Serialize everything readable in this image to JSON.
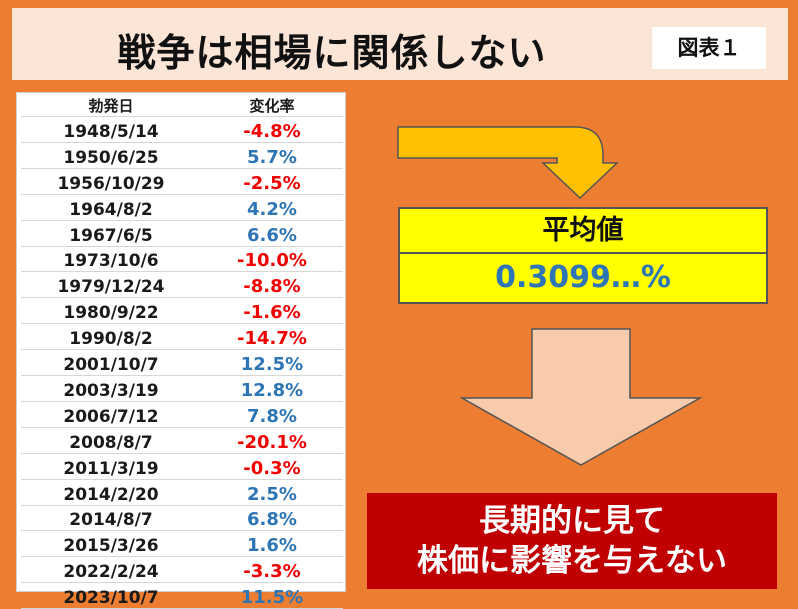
{
  "header": {
    "title": "戦争は相場に関係しない",
    "badge": "図表１"
  },
  "table": {
    "col_date": "勃発日",
    "col_change": "変化率",
    "rows": [
      {
        "date": "1948/5/14",
        "change": "-4.8%",
        "sign": "neg"
      },
      {
        "date": "1950/6/25",
        "change": "5.7%",
        "sign": "pos"
      },
      {
        "date": "1956/10/29",
        "change": "-2.5%",
        "sign": "neg"
      },
      {
        "date": "1964/8/2",
        "change": "4.2%",
        "sign": "pos"
      },
      {
        "date": "1967/6/5",
        "change": "6.6%",
        "sign": "pos"
      },
      {
        "date": "1973/10/6",
        "change": "-10.0%",
        "sign": "neg"
      },
      {
        "date": "1979/12/24",
        "change": "-8.8%",
        "sign": "neg"
      },
      {
        "date": "1980/9/22",
        "change": "-1.6%",
        "sign": "neg"
      },
      {
        "date": "1990/8/2",
        "change": "-14.7%",
        "sign": "neg"
      },
      {
        "date": "2001/10/7",
        "change": "12.5%",
        "sign": "pos"
      },
      {
        "date": "2003/3/19",
        "change": "12.8%",
        "sign": "pos"
      },
      {
        "date": "2006/7/12",
        "change": "7.8%",
        "sign": "pos"
      },
      {
        "date": "2008/8/7",
        "change": "-20.1%",
        "sign": "neg"
      },
      {
        "date": "2011/3/19",
        "change": "-0.3%",
        "sign": "neg"
      },
      {
        "date": "2014/2/20",
        "change": "2.5%",
        "sign": "pos"
      },
      {
        "date": "2014/8/7",
        "change": "6.8%",
        "sign": "pos"
      },
      {
        "date": "2015/3/26",
        "change": "1.6%",
        "sign": "pos"
      },
      {
        "date": "2022/2/24",
        "change": "-3.3%",
        "sign": "neg"
      },
      {
        "date": "2023/10/7",
        "change": "11.5%",
        "sign": "pos"
      }
    ]
  },
  "average": {
    "label": "平均値",
    "value": "0.3099…%"
  },
  "conclusion": {
    "line1": "長期的に見て",
    "line2": "株価に影響を与えない"
  },
  "colors": {
    "background": "#ED7D31",
    "header_bg": "#FBE5D6",
    "negative": "#F00000",
    "positive": "#2E75B6",
    "highlight": "#FFFF00",
    "conclusion_bg": "#C00000",
    "bent_arrow": "#FFC000",
    "down_arrow": "#F8CBAD"
  }
}
